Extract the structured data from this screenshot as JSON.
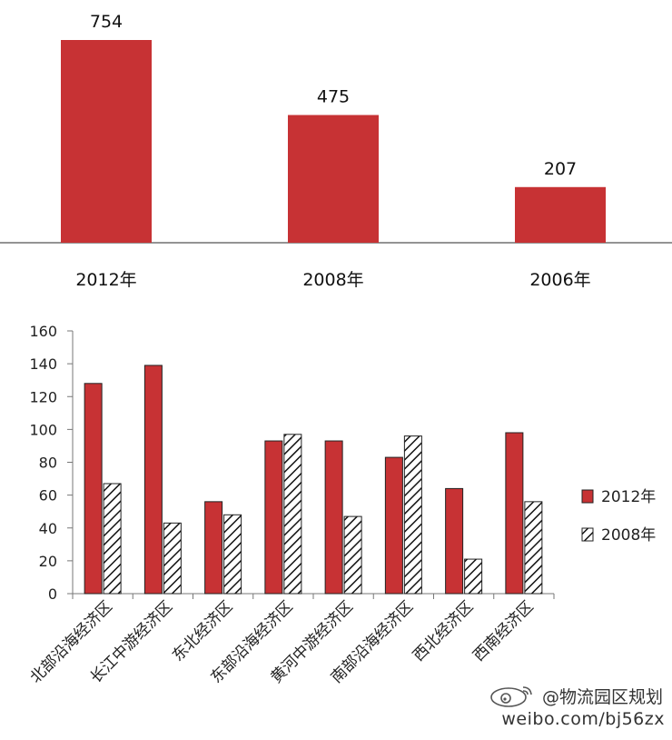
{
  "chart_data": [
    {
      "type": "bar",
      "categories": [
        "2012年",
        "2008年",
        "2006年"
      ],
      "values": [
        754,
        475,
        207
      ],
      "ylim": [
        0,
        754
      ],
      "grid": false,
      "colors": {
        "bar": "#c73234"
      }
    },
    {
      "type": "bar",
      "categories": [
        "北部沿海经济区",
        "长江中游经济区",
        "东北经济区",
        "东部沿海经济区",
        "黄河中游经济区",
        "南部沿海经济区",
        "西北经济区",
        "西南经济区"
      ],
      "series": [
        {
          "name": "2012年",
          "values": [
            128,
            139,
            56,
            93,
            93,
            83,
            64,
            98
          ],
          "fill": "solid"
        },
        {
          "name": "2008年",
          "values": [
            67,
            43,
            48,
            97,
            47,
            96,
            21,
            56
          ],
          "fill": "hatched"
        }
      ],
      "ylim": [
        0,
        160
      ],
      "yticks": [
        0,
        20,
        40,
        60,
        80,
        100,
        120,
        140,
        160
      ],
      "legend": "right",
      "grid": false,
      "colors": {
        "2012年": "#c73234",
        "2008年": "#ffffff"
      }
    }
  ],
  "watermark": {
    "handle": "@物流园区规划",
    "url": "weibo.com/bj56zx",
    "logo_icon": "weibo-logo-icon"
  }
}
